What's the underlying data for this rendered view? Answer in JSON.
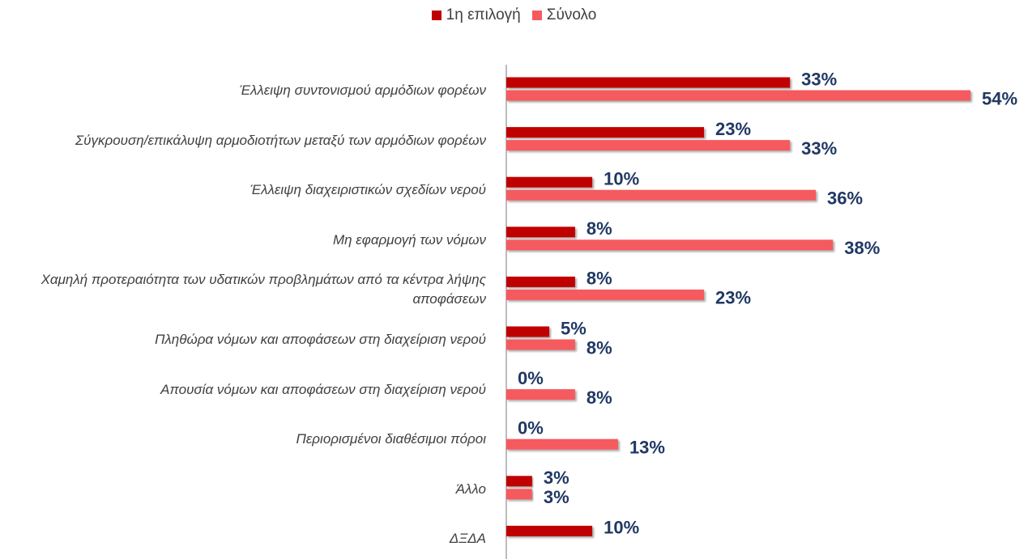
{
  "chart_data": {
    "type": "hbar",
    "categories": [
      "Έλλειψη συντονισμού αρμόδιων φορέων",
      "Σύγκρουση/επικάλυψη αρμοδιοτήτων μεταξύ των αρμόδιων φορέων",
      "Έλλειψη διαχειριστικών σχεδίων νερού",
      "Μη εφαρμογή των νόμων",
      "Χαμηλή προτεραιότητα των υδατικών προβλημάτων από τα κέντρα λήψης αποφάσεων",
      "Πληθώρα νόμων και αποφάσεων στη διαχείριση νερού",
      "Απουσία νόμων και αποφάσεων στη διαχείριση νερού",
      "Περιορισμένοι διαθέσιμοι πόροι",
      "Άλλο",
      "ΔΞΔΑ"
    ],
    "series": [
      {
        "name": "1η επιλογή",
        "color": "#c00000",
        "values": [
          33,
          23,
          10,
          8,
          8,
          5,
          0,
          0,
          3,
          10
        ],
        "value_labels": [
          "33%",
          "23%",
          "10%",
          "8%",
          "8%",
          "5%",
          "0%",
          "0%",
          "3%",
          "10%"
        ]
      },
      {
        "name": "Σύνολο",
        "color": "#f55a5f",
        "values": [
          54,
          33,
          36,
          38,
          23,
          8,
          8,
          13,
          3,
          null
        ],
        "value_labels": [
          "54%",
          "33%",
          "36%",
          "38%",
          "23%",
          "8%",
          "8%",
          "13%",
          "3%",
          null
        ]
      }
    ],
    "xlim": [
      0,
      54
    ],
    "legend": "top"
  }
}
